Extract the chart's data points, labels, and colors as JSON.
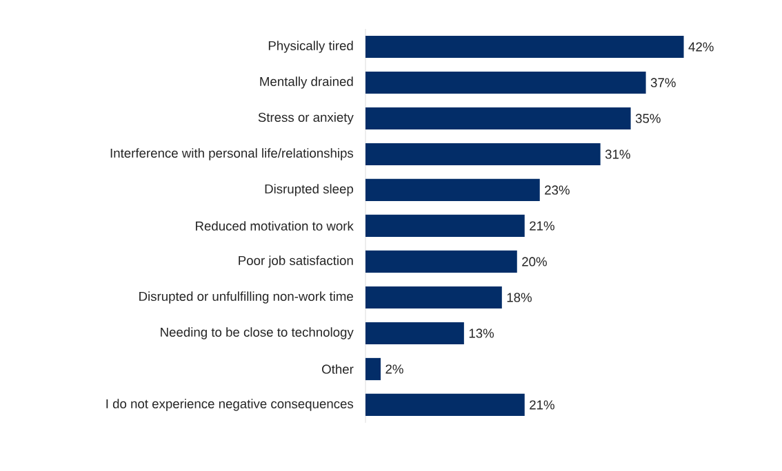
{
  "chart_data": {
    "type": "bar",
    "orientation": "horizontal",
    "categories": [
      "Physically tired",
      "Mentally drained",
      "Stress or anxiety",
      "Interference with personal life/relationships",
      "Disrupted sleep",
      "Reduced motivation to work",
      "Poor job satisfaction",
      "Disrupted or unfulfilling non-work time",
      "Needing to be close to technology",
      "Other",
      "I do not experience negative consequences"
    ],
    "values": [
      42,
      37,
      35,
      31,
      23,
      21,
      20,
      18,
      13,
      2,
      21
    ],
    "value_labels": [
      "42%",
      "37%",
      "35%",
      "31%",
      "23%",
      "21%",
      "20%",
      "18%",
      "13%",
      "2%",
      "21%"
    ],
    "color": "#032d68"
  }
}
